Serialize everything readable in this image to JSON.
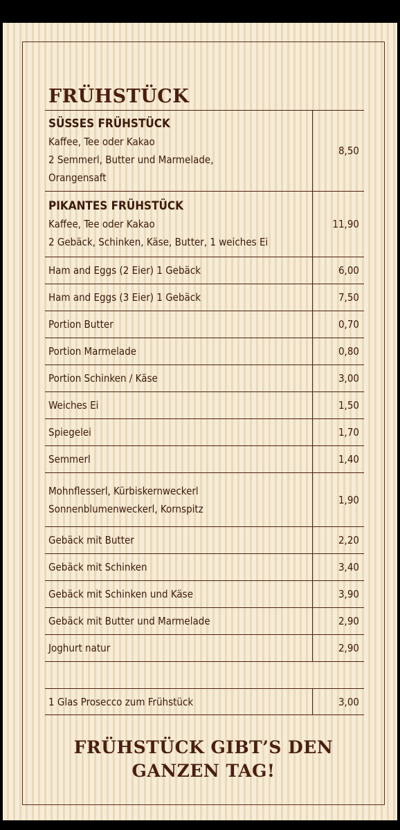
{
  "title": "FRÜHSTÜCK",
  "items": [
    {
      "heading": "SÜSSES FRÜHSTÜCK",
      "lines": [
        "Kaffee, Tee oder Kakao",
        "2 Semmerl, Butter und Marmelade,",
        "Orangensaft"
      ],
      "price": "8,50"
    },
    {
      "heading": "PIKANTES FRÜHSTÜCK",
      "lines": [
        "Kaffee, Tee oder Kakao",
        "2 Gebäck, Schinken, Käse, Butter, 1 weiches Ei"
      ],
      "price": "11,90"
    },
    {
      "lines": [
        "Ham and Eggs (2 Eier) 1 Gebäck"
      ],
      "price": "6,00"
    },
    {
      "lines": [
        "Ham and Eggs (3 Eier) 1 Gebäck"
      ],
      "price": "7,50"
    },
    {
      "lines": [
        "Portion Butter"
      ],
      "price": "0,70"
    },
    {
      "lines": [
        "Portion Marmelade"
      ],
      "price": "0,80"
    },
    {
      "lines": [
        "Portion Schinken / Käse"
      ],
      "price": "3,00"
    },
    {
      "lines": [
        "Weiches Ei"
      ],
      "price": "1,50"
    },
    {
      "lines": [
        "Spiegelei"
      ],
      "price": "1,70"
    },
    {
      "lines": [
        "Semmerl"
      ],
      "price": "1,40"
    },
    {
      "lines": [
        "Mohnflesserl, Kürbiskernweckerl",
        "Sonnenblumenweckerl, Kornspitz"
      ],
      "price": "1,90"
    },
    {
      "lines": [
        "Gebäck mit Butter"
      ],
      "price": "2,20"
    },
    {
      "lines": [
        "Gebäck mit Schinken"
      ],
      "price": "3,40"
    },
    {
      "lines": [
        "Gebäck mit Schinken und Käse"
      ],
      "price": "3,90"
    },
    {
      "lines": [
        "Gebäck mit Butter und Marmelade"
      ],
      "price": "2,90"
    },
    {
      "lines": [
        "Joghurt natur"
      ],
      "price": "2,90"
    },
    {
      "lines": [
        "1 Glas Prosecco zum Frühstück"
      ],
      "price": "3,00"
    }
  ],
  "footer": [
    "FRÜHSTÜCK GIBT’S DEN",
    "GANZEN TAG!"
  ]
}
